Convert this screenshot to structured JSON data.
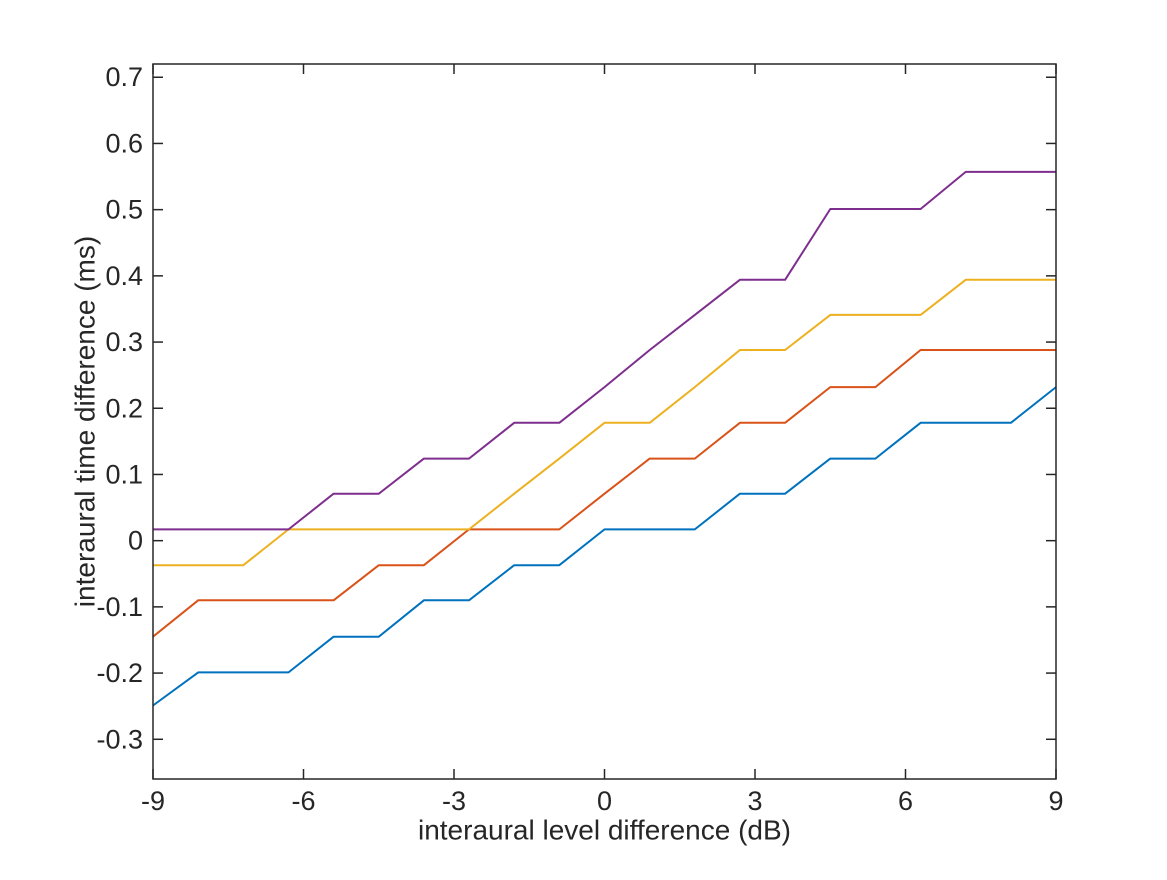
{
  "figure": {
    "background": "#ffffff",
    "axis_color": "#262626",
    "text_color": "#262626"
  },
  "chart_data": {
    "type": "line",
    "title": "",
    "xlabel": "interaural level difference (dB)",
    "ylabel": "interaural time difference (ms)",
    "xlim": [
      -9,
      9
    ],
    "ylim": [
      -0.36,
      0.72
    ],
    "xticks": [
      -9,
      -6,
      -3,
      0,
      3,
      6,
      9
    ],
    "xtick_labels": [
      "-9",
      "-6",
      "-3",
      "0",
      "3",
      "6",
      "9"
    ],
    "yticks": [
      -0.3,
      -0.2,
      -0.1,
      0,
      0.1,
      0.2,
      0.3,
      0.4,
      0.5,
      0.6,
      0.7
    ],
    "ytick_labels": [
      "-0.3",
      "-0.2",
      "-0.1",
      "0",
      "0.1",
      "0.2",
      "0.3",
      "0.4",
      "0.5",
      "0.6",
      "0.7"
    ],
    "grid": false,
    "legend": "none",
    "x": [
      -9,
      -8.1,
      -7.2,
      -6.3,
      -5.4,
      -4.5,
      -3.6,
      -2.7,
      -1.8,
      -0.9,
      0,
      0.9,
      1.8,
      2.7,
      3.6,
      4.5,
      5.4,
      6.3,
      7.2,
      8.1,
      9
    ],
    "series": [
      {
        "name": "curve-1-blue",
        "color": "#0072BD",
        "values": [
          -0.249,
          -0.199,
          -0.199,
          -0.199,
          -0.145,
          -0.145,
          -0.09,
          -0.09,
          -0.037,
          -0.037,
          0.017,
          0.017,
          0.017,
          0.071,
          0.071,
          0.124,
          0.124,
          0.178,
          0.178,
          0.178,
          0.232
        ]
      },
      {
        "name": "curve-2-orange",
        "color": "#D95319",
        "values": [
          -0.145,
          -0.09,
          -0.09,
          -0.09,
          -0.09,
          -0.037,
          -0.037,
          0.017,
          0.017,
          0.017,
          0.071,
          0.124,
          0.124,
          0.178,
          0.178,
          0.232,
          0.232,
          0.288,
          0.288,
          0.288,
          0.288
        ]
      },
      {
        "name": "curve-3-yellow",
        "color": "#EDB120",
        "values": [
          -0.037,
          -0.037,
          -0.037,
          0.017,
          0.017,
          0.017,
          0.017,
          0.017,
          0.071,
          0.124,
          0.178,
          0.178,
          0.232,
          0.288,
          0.288,
          0.341,
          0.341,
          0.341,
          0.394,
          0.394,
          0.394
        ]
      },
      {
        "name": "curve-4-purple",
        "color": "#7E2F8E",
        "values": [
          0.017,
          0.017,
          0.017,
          0.017,
          0.071,
          0.071,
          0.124,
          0.124,
          0.178,
          0.178,
          0.232,
          0.288,
          0.341,
          0.394,
          0.394,
          0.501,
          0.501,
          0.501,
          0.557,
          0.557,
          0.557
        ]
      }
    ]
  }
}
